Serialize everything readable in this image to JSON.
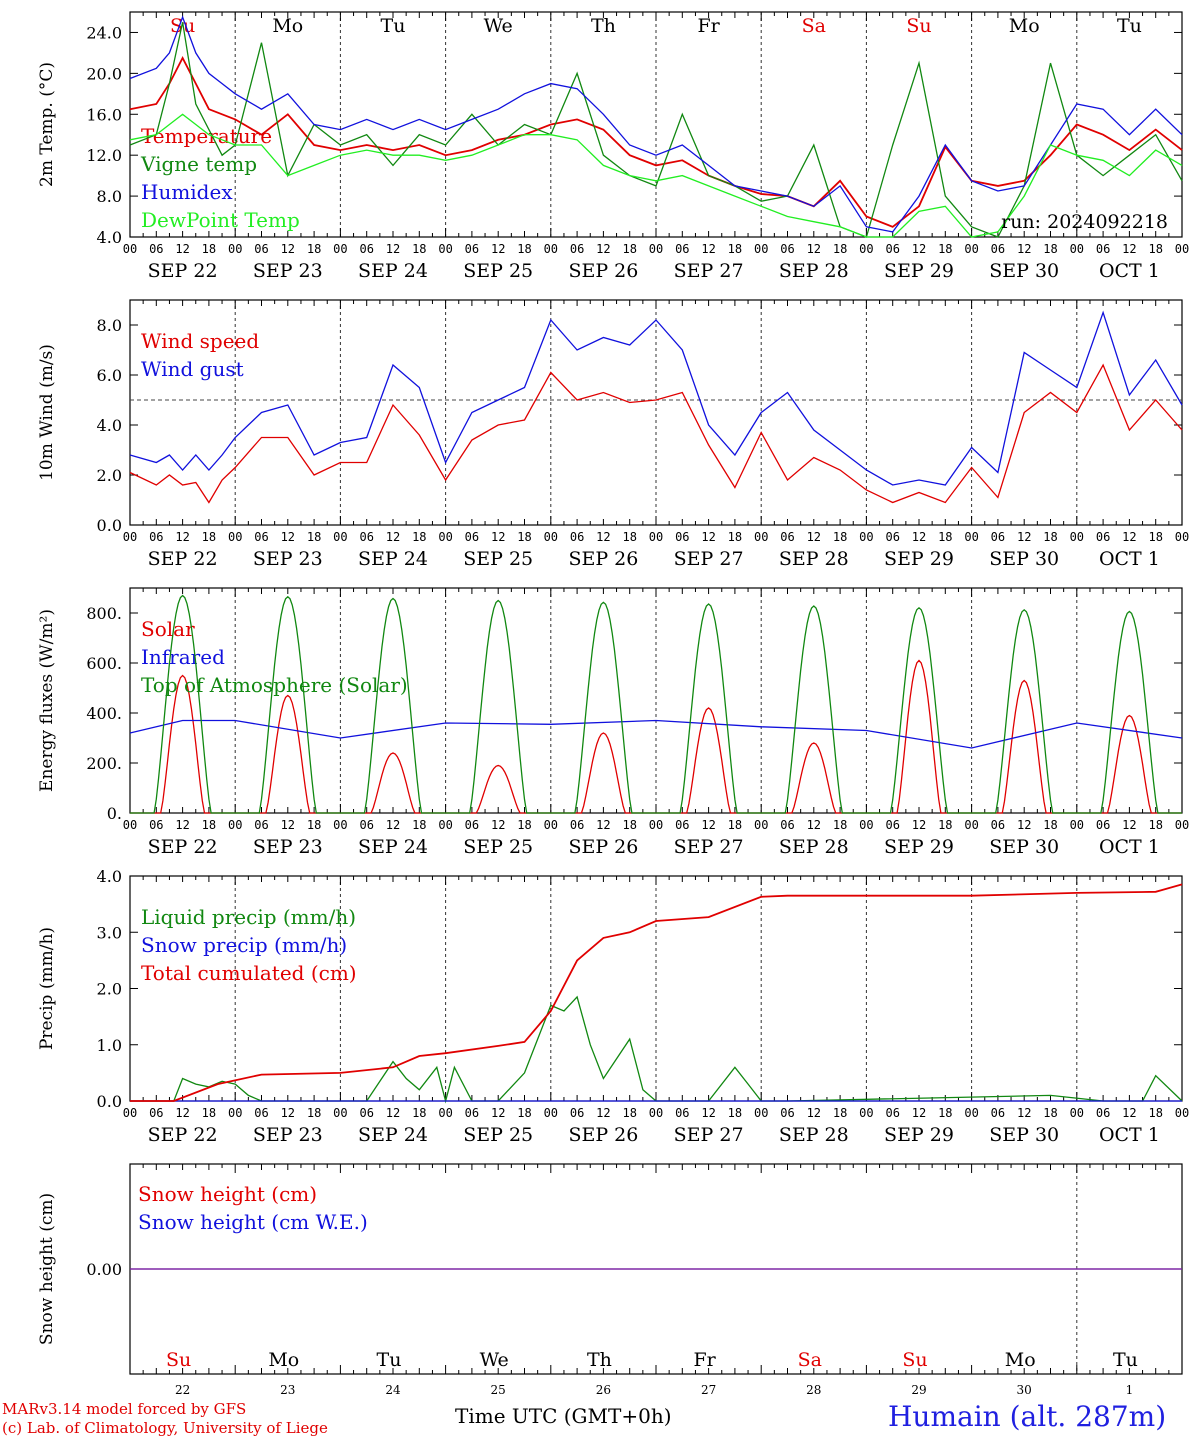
{
  "footer": {
    "credit_line1": "MARv3.14 model forced by GFS",
    "credit_line2": "(c) Lab. of Climatology, University of Liege",
    "x_axis_title": "Time UTC (GMT+0h)",
    "station": "Humain (alt. 287m)"
  },
  "colors": {
    "red": "#e00000",
    "green": "#118811",
    "blue": "#1111dd",
    "lime": "#22ee22",
    "purple": "#7a1fa2"
  },
  "chart_data": [
    {
      "type": "line",
      "ylabel": "2m Temp. (°C)",
      "ylim": [
        4,
        26
      ],
      "yticks": [
        "4.0",
        "8.0",
        "12.0",
        "16.0",
        "20.0",
        "24.0"
      ],
      "weekdays": [
        "Su",
        "Mo",
        "Tu",
        "We",
        "Th",
        "Fr",
        "Sa",
        "Su",
        "Mo",
        "Tu"
      ],
      "weekday_colors": [
        "red",
        "black",
        "black",
        "black",
        "black",
        "black",
        "red",
        "red",
        "black",
        "black"
      ],
      "hour_ticks": [
        "00",
        "06",
        "12",
        "18"
      ],
      "dates": [
        "SEP 22",
        "SEP 23",
        "SEP 24",
        "SEP 25",
        "SEP 26",
        "SEP 27",
        "SEP 28",
        "SEP 29",
        "SEP 30",
        "OCT  1"
      ],
      "annotation": "run: 2024092218",
      "x_hours_range": [
        0,
        240
      ],
      "series": [
        {
          "name": "Temperature",
          "color": "red",
          "x": [
            0,
            6,
            9,
            12,
            15,
            18,
            21,
            24,
            30,
            36,
            42,
            48,
            54,
            60,
            66,
            72,
            78,
            84,
            90,
            96,
            102,
            108,
            114,
            120,
            126,
            132,
            138,
            144,
            150,
            156,
            162,
            168,
            174,
            180,
            186,
            192,
            198,
            204,
            210,
            216,
            222,
            228,
            234,
            240
          ],
          "y": [
            16.5,
            17,
            19,
            21.5,
            19,
            16.5,
            16,
            15.5,
            14,
            16,
            13,
            12.5,
            13,
            12.5,
            13,
            12,
            12.5,
            13.5,
            14,
            15,
            15.5,
            14.5,
            12,
            11,
            11.5,
            10,
            9,
            8.2,
            8,
            7,
            9.5,
            6,
            5,
            7,
            12.8,
            9.5,
            9,
            9.5,
            12,
            15,
            14,
            12.5,
            14.5,
            12.5
          ]
        },
        {
          "name": "Vigne temp",
          "color": "green",
          "x": [
            0,
            6,
            9,
            12,
            15,
            18,
            21,
            24,
            30,
            36,
            42,
            48,
            54,
            60,
            66,
            72,
            78,
            84,
            90,
            96,
            102,
            108,
            114,
            120,
            126,
            132,
            138,
            144,
            150,
            156,
            162,
            168,
            174,
            180,
            186,
            192,
            198,
            204,
            210,
            216,
            222,
            228,
            234,
            240
          ],
          "y": [
            13,
            14,
            19,
            25,
            17,
            14.5,
            12,
            13,
            23,
            10,
            15,
            13,
            14,
            11,
            14,
            13,
            16,
            13,
            15,
            14,
            20,
            12,
            10,
            9,
            16,
            10,
            9,
            7.5,
            8,
            13,
            5,
            3,
            13,
            21,
            8,
            5,
            4,
            9,
            21,
            12,
            10,
            12,
            14,
            9.5
          ]
        },
        {
          "name": "Humidex",
          "color": "blue",
          "x": [
            0,
            6,
            9,
            12,
            15,
            18,
            21,
            24,
            30,
            36,
            42,
            48,
            54,
            60,
            66,
            72,
            78,
            84,
            90,
            96,
            102,
            108,
            114,
            120,
            126,
            132,
            138,
            144,
            150,
            156,
            162,
            168,
            174,
            180,
            186,
            192,
            198,
            204,
            210,
            216,
            222,
            228,
            234,
            240
          ],
          "y": [
            19.5,
            20.5,
            22,
            25.5,
            22,
            20,
            19,
            18,
            16.5,
            18,
            15,
            14.5,
            15.5,
            14.5,
            15.5,
            14.5,
            15.5,
            16.5,
            18,
            19,
            18.5,
            16,
            13,
            12,
            13,
            11,
            9,
            8.5,
            8,
            7,
            9,
            5,
            4.5,
            8,
            13,
            9.5,
            8.5,
            9,
            13,
            17,
            16.5,
            14,
            16.5,
            14
          ]
        },
        {
          "name": "DewPoint Temp",
          "color": "lime",
          "x": [
            0,
            6,
            9,
            12,
            15,
            18,
            21,
            24,
            30,
            36,
            42,
            48,
            54,
            60,
            66,
            72,
            78,
            84,
            90,
            96,
            102,
            108,
            114,
            120,
            126,
            132,
            138,
            144,
            150,
            156,
            162,
            168,
            174,
            180,
            186,
            192,
            198,
            204,
            210,
            216,
            222,
            228,
            234,
            240
          ],
          "y": [
            13.5,
            14,
            15,
            16,
            15,
            14,
            13.5,
            13,
            13,
            10,
            11,
            12,
            12.5,
            12,
            12,
            11.5,
            12,
            13,
            14,
            14,
            13.5,
            11,
            10,
            9.5,
            10,
            9,
            8,
            7,
            6,
            5.5,
            5,
            4,
            4,
            6.5,
            7,
            4,
            4.5,
            8,
            13,
            12,
            11.5,
            10,
            12.5,
            11
          ]
        }
      ]
    },
    {
      "type": "line",
      "ylabel": "10m Wind (m/s)",
      "ylim": [
        0,
        9
      ],
      "yticks": [
        "0.0",
        "2.0",
        "4.0",
        "6.0",
        "8.0"
      ],
      "hour_ticks": [
        "00",
        "06",
        "12",
        "18"
      ],
      "dates": [
        "SEP 22",
        "SEP 23",
        "SEP 24",
        "SEP 25",
        "SEP 26",
        "SEP 27",
        "SEP 28",
        "SEP 29",
        "SEP 30",
        "OCT  1"
      ],
      "reference_line": 5,
      "series": [
        {
          "name": "Wind speed",
          "color": "red",
          "x": [
            0,
            6,
            9,
            12,
            15,
            18,
            21,
            24,
            30,
            36,
            42,
            48,
            54,
            60,
            66,
            72,
            78,
            84,
            90,
            96,
            102,
            108,
            114,
            120,
            126,
            132,
            138,
            144,
            150,
            156,
            162,
            168,
            174,
            180,
            186,
            192,
            198,
            204,
            210,
            216,
            222,
            228,
            234,
            240
          ],
          "y": [
            2.1,
            1.6,
            2,
            1.6,
            1.7,
            0.9,
            1.8,
            2.3,
            3.5,
            3.5,
            2,
            2.5,
            2.5,
            4.8,
            3.6,
            1.8,
            3.4,
            4,
            4.2,
            6.1,
            5,
            5.3,
            4.9,
            5,
            5.3,
            3.2,
            1.5,
            3.7,
            1.8,
            2.7,
            2.2,
            1.4,
            0.9,
            1.3,
            0.9,
            2.3,
            1.1,
            4.5,
            5.3,
            4.5,
            6.4,
            3.8,
            5,
            3.8
          ]
        },
        {
          "name": "Wind gust",
          "color": "blue",
          "x": [
            0,
            6,
            9,
            12,
            15,
            18,
            21,
            24,
            30,
            36,
            42,
            48,
            54,
            60,
            66,
            72,
            78,
            84,
            90,
            96,
            102,
            108,
            114,
            120,
            126,
            132,
            138,
            144,
            150,
            156,
            162,
            168,
            174,
            180,
            186,
            192,
            198,
            204,
            210,
            216,
            222,
            228,
            234,
            240
          ],
          "y": [
            2.8,
            2.5,
            2.8,
            2.2,
            2.8,
            2.2,
            2.8,
            3.5,
            4.5,
            4.8,
            2.8,
            3.3,
            3.5,
            6.4,
            5.5,
            2.5,
            4.5,
            5,
            5.5,
            8.2,
            7,
            7.5,
            7.2,
            8.2,
            7,
            4,
            2.8,
            4.5,
            5.3,
            3.8,
            3,
            2.2,
            1.6,
            1.8,
            1.6,
            3.1,
            2.1,
            6.9,
            6.2,
            5.5,
            8.5,
            5.2,
            6.6,
            4.8
          ]
        }
      ]
    },
    {
      "type": "line",
      "ylabel": "Energy fluxes (W/m²)",
      "ylim": [
        0,
        900
      ],
      "yticks": [
        "0.",
        "200.",
        "400.",
        "600.",
        "800."
      ],
      "hour_ticks": [
        "00",
        "06",
        "12",
        "18"
      ],
      "dates": [
        "SEP 22",
        "SEP 23",
        "SEP 24",
        "SEP 25",
        "SEP 26",
        "SEP 27",
        "SEP 28",
        "SEP 29",
        "SEP 30",
        "OCT  1"
      ],
      "series": [
        {
          "name": "Solar",
          "color": "red",
          "daily_peak_hour": 12,
          "daily_peaks": [
            550,
            470,
            240,
            190,
            320,
            420,
            280,
            610,
            530,
            390
          ]
        },
        {
          "name": "Infrared",
          "color": "blue",
          "x": [
            0,
            12,
            24,
            48,
            72,
            96,
            120,
            144,
            168,
            192,
            216,
            240
          ],
          "y": [
            320,
            370,
            370,
            300,
            360,
            355,
            370,
            345,
            330,
            260,
            360,
            300
          ]
        },
        {
          "name": "Top of Atmosphere (Solar)",
          "color": "green",
          "daily_peak_hour": 12,
          "daily_peaks": [
            870,
            865,
            858,
            850,
            843,
            836,
            828,
            821,
            813,
            806
          ]
        }
      ]
    },
    {
      "type": "line",
      "ylabel": "Precip (mm/h)",
      "ylim": [
        0,
        4
      ],
      "yticks": [
        "0.0",
        "1.0",
        "2.0",
        "3.0",
        "4.0"
      ],
      "hour_ticks": [
        "00",
        "06",
        "12",
        "18"
      ],
      "dates": [
        "SEP 22",
        "SEP 23",
        "SEP 24",
        "SEP 25",
        "SEP 26",
        "SEP 27",
        "SEP 28",
        "SEP 29",
        "SEP 30",
        "OCT  1"
      ],
      "series": [
        {
          "name": "Liquid precip (mm/h)",
          "color": "green",
          "x": [
            0,
            10,
            12,
            15,
            18,
            21,
            24,
            27,
            30,
            36,
            54,
            60,
            63,
            66,
            70,
            72,
            74,
            78,
            84,
            90,
            96,
            99,
            102,
            105,
            108,
            114,
            117,
            120,
            126,
            132,
            138,
            141,
            144,
            150,
            210,
            222,
            231,
            234,
            240
          ],
          "y": [
            0,
            0,
            0.4,
            0.3,
            0.25,
            0.35,
            0.3,
            0.1,
            0,
            0,
            0,
            0.7,
            0.4,
            0.2,
            0.6,
            0,
            0.6,
            0,
            0,
            0.5,
            1.7,
            1.6,
            1.85,
            1,
            0.4,
            1.1,
            0.2,
            0,
            0,
            0,
            0.6,
            0.3,
            0,
            0,
            0.1,
            0,
            0,
            0.45,
            0
          ]
        },
        {
          "name": "Snow precip (mm/h)",
          "color": "blue",
          "x": [
            0,
            240
          ],
          "y": [
            0,
            0
          ]
        },
        {
          "name": "Total cumulated (cm)",
          "color": "red",
          "x": [
            0,
            10,
            20,
            30,
            48,
            60,
            66,
            72,
            84,
            90,
            96,
            102,
            108,
            114,
            120,
            132,
            144,
            150,
            192,
            216,
            234,
            240
          ],
          "y": [
            0,
            0,
            0.3,
            0.47,
            0.5,
            0.6,
            0.8,
            0.85,
            0.98,
            1.05,
            1.6,
            2.5,
            2.9,
            3,
            3.2,
            3.27,
            3.63,
            3.65,
            3.65,
            3.7,
            3.72,
            3.85
          ]
        }
      ]
    },
    {
      "type": "line",
      "ylabel": "Snow height (cm)",
      "yticks": [
        "0.00"
      ],
      "weekdays": [
        "Su",
        "Mo",
        "Tu",
        "We",
        "Th",
        "Fr",
        "Sa",
        "Su",
        "Mo",
        "Tu"
      ],
      "weekday_colors": [
        "red",
        "black",
        "black",
        "black",
        "black",
        "black",
        "red",
        "red",
        "black",
        "black"
      ],
      "day_numbers": [
        "22",
        "23",
        "24",
        "25",
        "26",
        "27",
        "28",
        "29",
        "30",
        "1"
      ],
      "series": [
        {
          "name": "Snow height (cm)",
          "color": "red",
          "x": [
            0,
            240
          ],
          "y": [
            0,
            0
          ]
        },
        {
          "name": "Snow height (cm W.E.)",
          "color": "blue",
          "x": [
            0,
            240
          ],
          "y": [
            0,
            0
          ]
        }
      ]
    }
  ]
}
